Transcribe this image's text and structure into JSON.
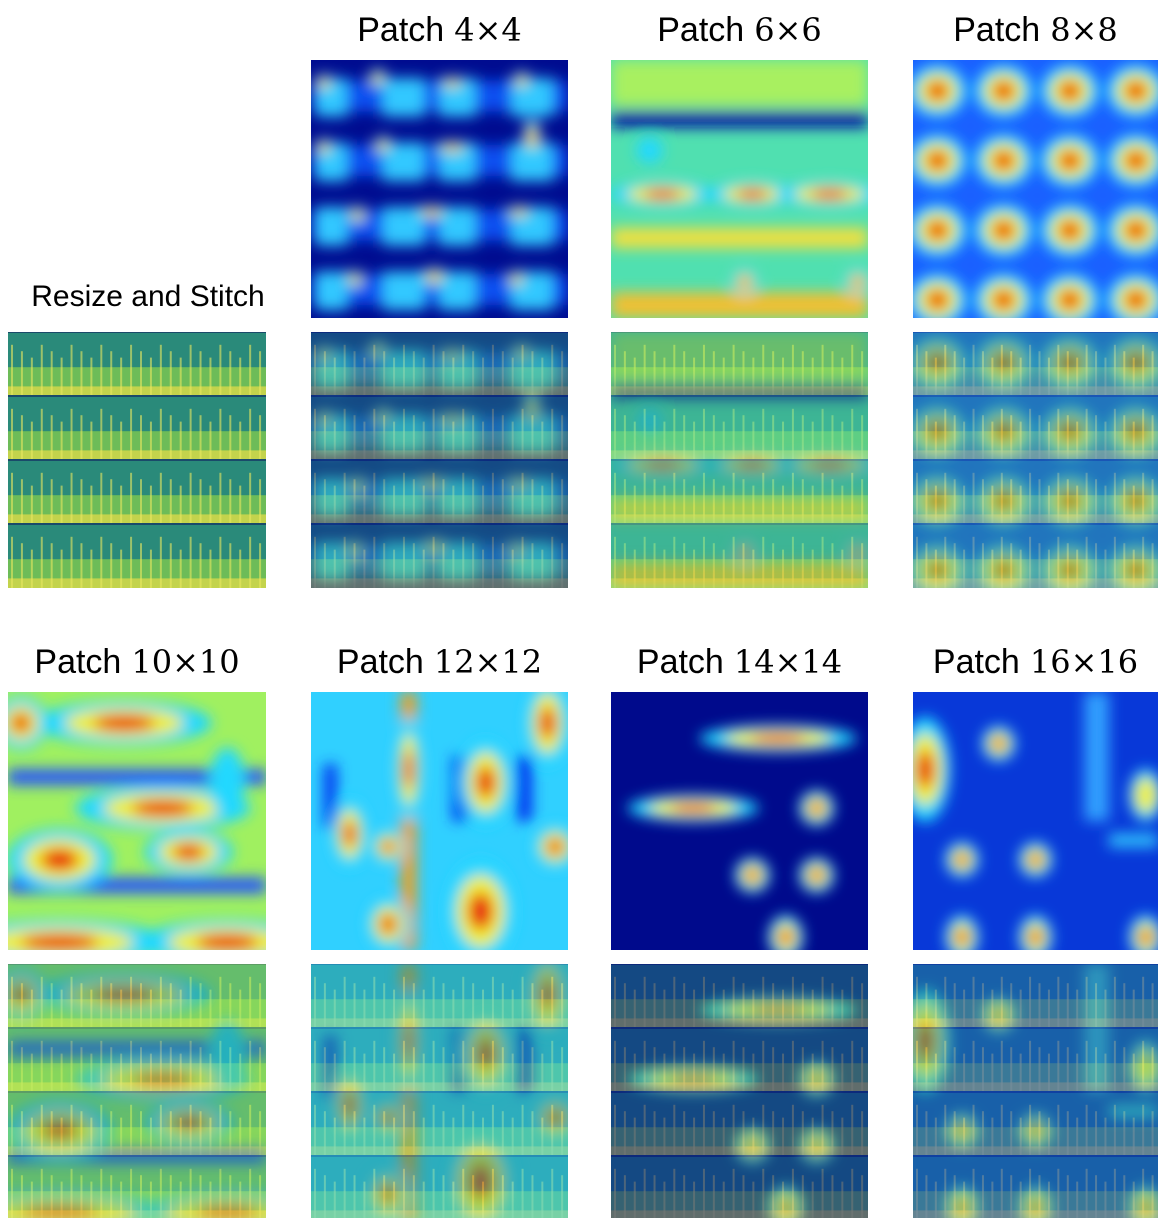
{
  "stitch_label": "Resize and Stitch",
  "panels": [
    {
      "label": "Patch",
      "size": "4×4"
    },
    {
      "label": "Patch",
      "size": "6×6"
    },
    {
      "label": "Patch",
      "size": "8×8"
    },
    {
      "label": "Patch",
      "size": "10×10"
    },
    {
      "label": "Patch",
      "size": "12×12"
    },
    {
      "label": "Patch",
      "size": "14×14"
    },
    {
      "label": "Patch",
      "size": "16×16"
    }
  ]
}
